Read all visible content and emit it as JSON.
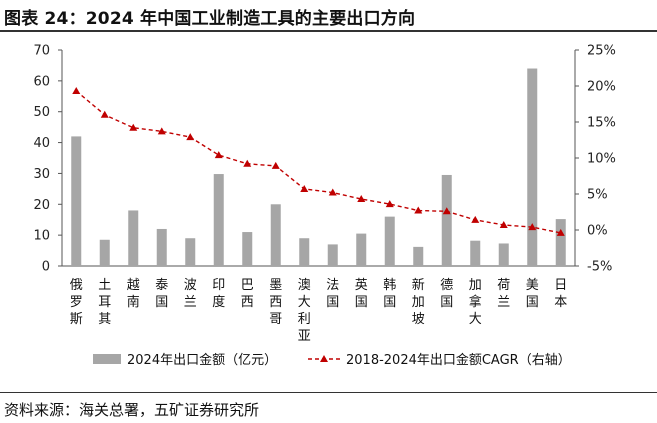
{
  "header": {
    "title": "图表 24：2024 年中国工业制造工具的主要出口方向"
  },
  "footer": {
    "source": "资料来源：海关总署，五矿证券研究所"
  },
  "chart_data": {
    "type": "bar",
    "title": "",
    "categories": [
      "俄罗斯",
      "土耳其",
      "越南",
      "泰国",
      "波兰",
      "印度",
      "巴西",
      "墨西哥",
      "澳大利亚",
      "法国",
      "英国",
      "韩国",
      "新加坡",
      "德国",
      "加拿大",
      "荷兰",
      "美国",
      "日本"
    ],
    "series": [
      {
        "name": "2024年出口金额（亿元）",
        "type": "bar",
        "axis": "left",
        "color": "#a6a6a6",
        "values": [
          42.0,
          8.5,
          18.0,
          12.0,
          9.0,
          29.8,
          11.0,
          20.0,
          9.0,
          7.0,
          10.5,
          16.0,
          6.2,
          29.5,
          8.2,
          7.3,
          64.0,
          15.2
        ]
      },
      {
        "name": "2018-2024年出口金额CAGR（右轴）",
        "type": "line",
        "axis": "right",
        "color": "#c00000",
        "unit": "%",
        "values": [
          19.3,
          16.0,
          14.2,
          13.7,
          12.9,
          10.4,
          9.2,
          8.9,
          5.7,
          5.2,
          4.3,
          3.6,
          2.7,
          2.6,
          1.4,
          0.7,
          0.4,
          -0.4
        ]
      }
    ],
    "y_left": {
      "min": 0,
      "max": 70,
      "ticks": [
        0,
        10,
        20,
        30,
        40,
        50,
        60,
        70
      ]
    },
    "y_right": {
      "min": -5,
      "max": 25,
      "ticks": [
        -5,
        0,
        5,
        10,
        15,
        20,
        25
      ],
      "tick_labels": [
        "-5%",
        "0%",
        "5%",
        "10%",
        "15%",
        "20%",
        "25%"
      ]
    },
    "legend_position": "bottom",
    "grid": false
  }
}
